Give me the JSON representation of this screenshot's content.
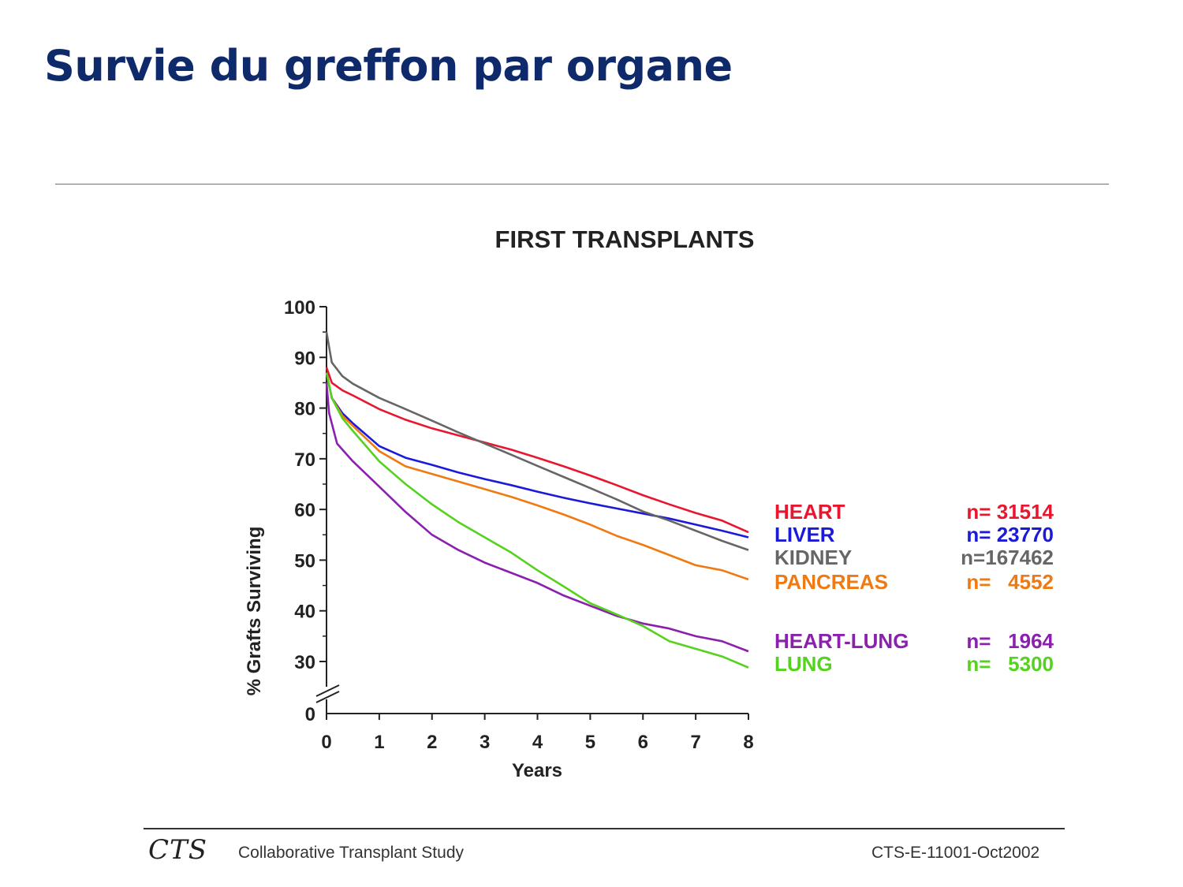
{
  "slide": {
    "title": "Survie du greffon par organe"
  },
  "footer": {
    "logo": "CTS",
    "study_name": "Collaborative Transplant Study",
    "code": "CTS-E-11001-Oct2002"
  },
  "chart_data": {
    "type": "line",
    "title": "FIRST TRANSPLANTS",
    "xlabel": "Years",
    "ylabel": "% Grafts Surviving",
    "xlim": [
      0,
      8
    ],
    "ylim": [
      25,
      100
    ],
    "x_ticks": [
      "0",
      "1",
      "2",
      "3",
      "4",
      "5",
      "6",
      "7",
      "8"
    ],
    "y_ticks": [
      "100",
      "90",
      "80",
      "70",
      "60",
      "50",
      "40",
      "30",
      "0"
    ],
    "y_axis_break": true,
    "legend_position": "right",
    "series": [
      {
        "name": "HEART",
        "n_label": "n= 31514",
        "color": "#e8162e",
        "x": [
          0,
          0.1,
          0.3,
          0.5,
          1,
          1.5,
          2,
          2.5,
          3,
          3.5,
          4,
          4.5,
          5,
          5.5,
          6,
          6.5,
          7,
          7.5,
          8
        ],
        "values": [
          88,
          85,
          83.5,
          82.5,
          79.8,
          77.7,
          76,
          74.6,
          73.2,
          71.8,
          70.2,
          68.5,
          66.7,
          64.8,
          62.8,
          61,
          59.3,
          57.8,
          55.5
        ]
      },
      {
        "name": "LIVER",
        "n_label": "n= 23770",
        "color": "#1a1ad8",
        "x": [
          0,
          0.1,
          0.3,
          0.5,
          1,
          1.5,
          2,
          2.5,
          3,
          3.5,
          4,
          4.5,
          5,
          5.5,
          6,
          6.5,
          7,
          7.5,
          8
        ],
        "values": [
          87,
          82,
          79,
          77,
          72.5,
          70.2,
          68.8,
          67.3,
          66,
          64.8,
          63.5,
          62.3,
          61.2,
          60.2,
          59.2,
          58.2,
          57,
          55.8,
          54.5
        ]
      },
      {
        "name": "KIDNEY",
        "n_label": "n=167462",
        "color": "#666666",
        "x": [
          0,
          0.1,
          0.3,
          0.5,
          1,
          1.5,
          2,
          2.5,
          3,
          3.5,
          4,
          4.5,
          5,
          5.5,
          6,
          6.5,
          7,
          7.5,
          8
        ],
        "values": [
          95,
          89,
          86.3,
          84.8,
          82,
          79.8,
          77.5,
          75.2,
          73,
          70.8,
          68.6,
          66.4,
          64.2,
          62,
          59.6,
          57.8,
          55.8,
          53.8,
          52
        ]
      },
      {
        "name": "PANCREAS",
        "n_label": "n=   4552",
        "color": "#f07a12",
        "x": [
          0,
          0.1,
          0.3,
          0.5,
          1,
          1.5,
          2,
          2.5,
          3,
          3.5,
          4,
          4.5,
          5,
          5.5,
          6,
          6.5,
          7,
          7.5,
          8
        ],
        "values": [
          87,
          82,
          78.5,
          76.5,
          71.5,
          68.5,
          67,
          65.5,
          64,
          62.5,
          60.8,
          59,
          57,
          54.8,
          53,
          51,
          49,
          48,
          46.2
        ]
      },
      {
        "name": "HEART-LUNG",
        "n_label": "n=   1964",
        "color": "#8b1fae",
        "x": [
          0,
          0.05,
          0.2,
          0.5,
          1,
          1.5,
          2,
          2.5,
          3,
          3.5,
          4,
          4.5,
          5,
          5.5,
          6,
          6.5,
          7,
          7.5,
          8
        ],
        "values": [
          85,
          79,
          73,
          69.5,
          64.5,
          59.5,
          55,
          52,
          49.5,
          47.5,
          45.5,
          43,
          41,
          39,
          37.5,
          36.5,
          35,
          34,
          32
        ]
      },
      {
        "name": "LUNG",
        "n_label": "n=   5300",
        "color": "#55d21e",
        "x": [
          0,
          0.1,
          0.3,
          0.5,
          1,
          1.5,
          2,
          2.5,
          3,
          3.5,
          4,
          4.5,
          5,
          5.5,
          6,
          6.5,
          7,
          7.5,
          8
        ],
        "values": [
          87,
          82,
          78,
          75.5,
          69.5,
          65,
          61,
          57.5,
          54.5,
          51.5,
          48,
          44.8,
          41.5,
          39.3,
          37,
          34,
          32.5,
          31,
          28.8
        ]
      }
    ]
  }
}
